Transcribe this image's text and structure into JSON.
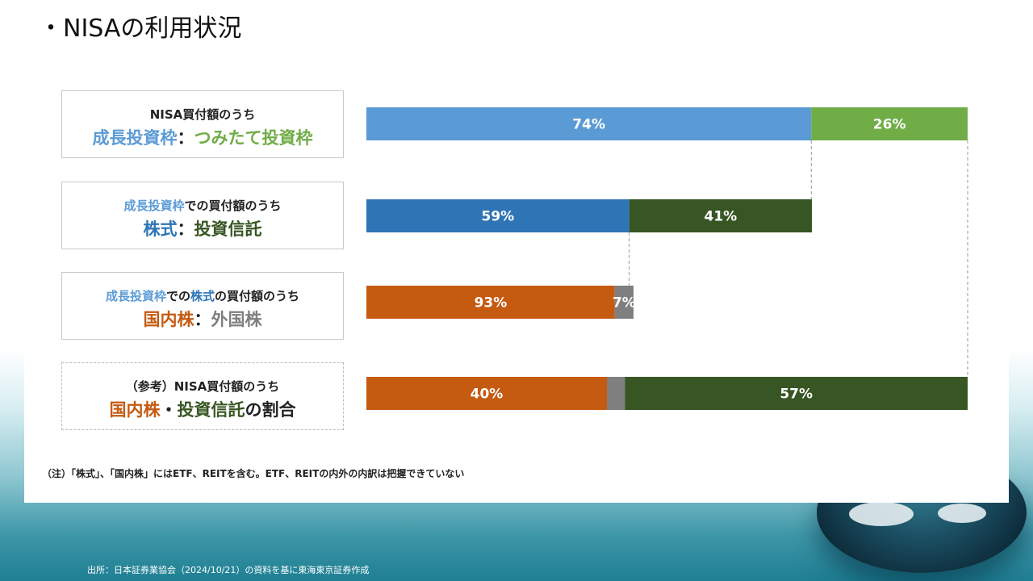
{
  "title": "・NISAの利用状況",
  "rows": [
    {
      "line1": [
        {
          "text": "NISA買付額のうち",
          "color": "dark"
        }
      ],
      "line2": [
        {
          "text": "成長投資枠",
          "color": "lblue"
        },
        {
          "text": "：",
          "color": "dark"
        },
        {
          "text": "つみたて投資枠",
          "color": "green"
        }
      ]
    },
    {
      "line1": [
        {
          "text": "成長投資枠",
          "color": "lblue"
        },
        {
          "text": "での買付額のうち",
          "color": "dark"
        }
      ],
      "line2": [
        {
          "text": "株式",
          "color": "blue"
        },
        {
          "text": "：",
          "color": "dark"
        },
        {
          "text": "投資信託",
          "color": "dgreen"
        }
      ]
    },
    {
      "line1": [
        {
          "text": "成長投資枠",
          "color": "lblue"
        },
        {
          "text": "での",
          "color": "dark"
        },
        {
          "text": "株式",
          "color": "blue"
        },
        {
          "text": "の買付額のうち",
          "color": "dark"
        }
      ],
      "line2": [
        {
          "text": "国内株",
          "color": "orange"
        },
        {
          "text": "：",
          "color": "dark"
        },
        {
          "text": "外国株",
          "color": "gray"
        }
      ]
    },
    {
      "line1": [
        {
          "text": "（参考）NISA買付額のうち",
          "color": "dark"
        }
      ],
      "line2": [
        {
          "text": "国内株",
          "color": "orange"
        },
        {
          "text": "・",
          "color": "dark"
        },
        {
          "text": "投資信託",
          "color": "dgreen"
        },
        {
          "text": "の割合",
          "color": "dark"
        }
      ]
    }
  ],
  "chart_data": {
    "type": "bar",
    "orientation": "horizontal-stacked",
    "series_colors": {
      "lblue": "#5b9bd5",
      "green": "#70ad47",
      "blue": "#2e75b6",
      "dgreen": "#375623",
      "orange": "#c55a11",
      "gray": "#7f7f7f"
    },
    "bars": [
      {
        "segments": [
          {
            "value": 74,
            "label": "74%",
            "color": "lblue"
          },
          {
            "value": 26,
            "label": "26%",
            "color": "green"
          }
        ]
      },
      {
        "segments": [
          {
            "value": 59,
            "label": "59%",
            "color": "blue"
          },
          {
            "value": 41,
            "label": "41%",
            "color": "dgreen"
          }
        ]
      },
      {
        "segments": [
          {
            "value": 93,
            "label": "93%",
            "color": "orange"
          },
          {
            "value": 7,
            "label": "7%",
            "color": "gray"
          }
        ]
      },
      {
        "segments": [
          {
            "value": 40,
            "label": "40%",
            "color": "orange"
          },
          {
            "value": 3,
            "label": "",
            "color": "gray"
          },
          {
            "value": 57,
            "label": "57%",
            "color": "dgreen"
          }
        ]
      }
    ]
  },
  "note": "（注）「株式」、「国内株」にはETF、REITを含む。ETF、REITの内外の内訳は把握できていない",
  "source": "出所：日本証券業協会（2024/10/21）の資料を基に東海東京証券作成"
}
